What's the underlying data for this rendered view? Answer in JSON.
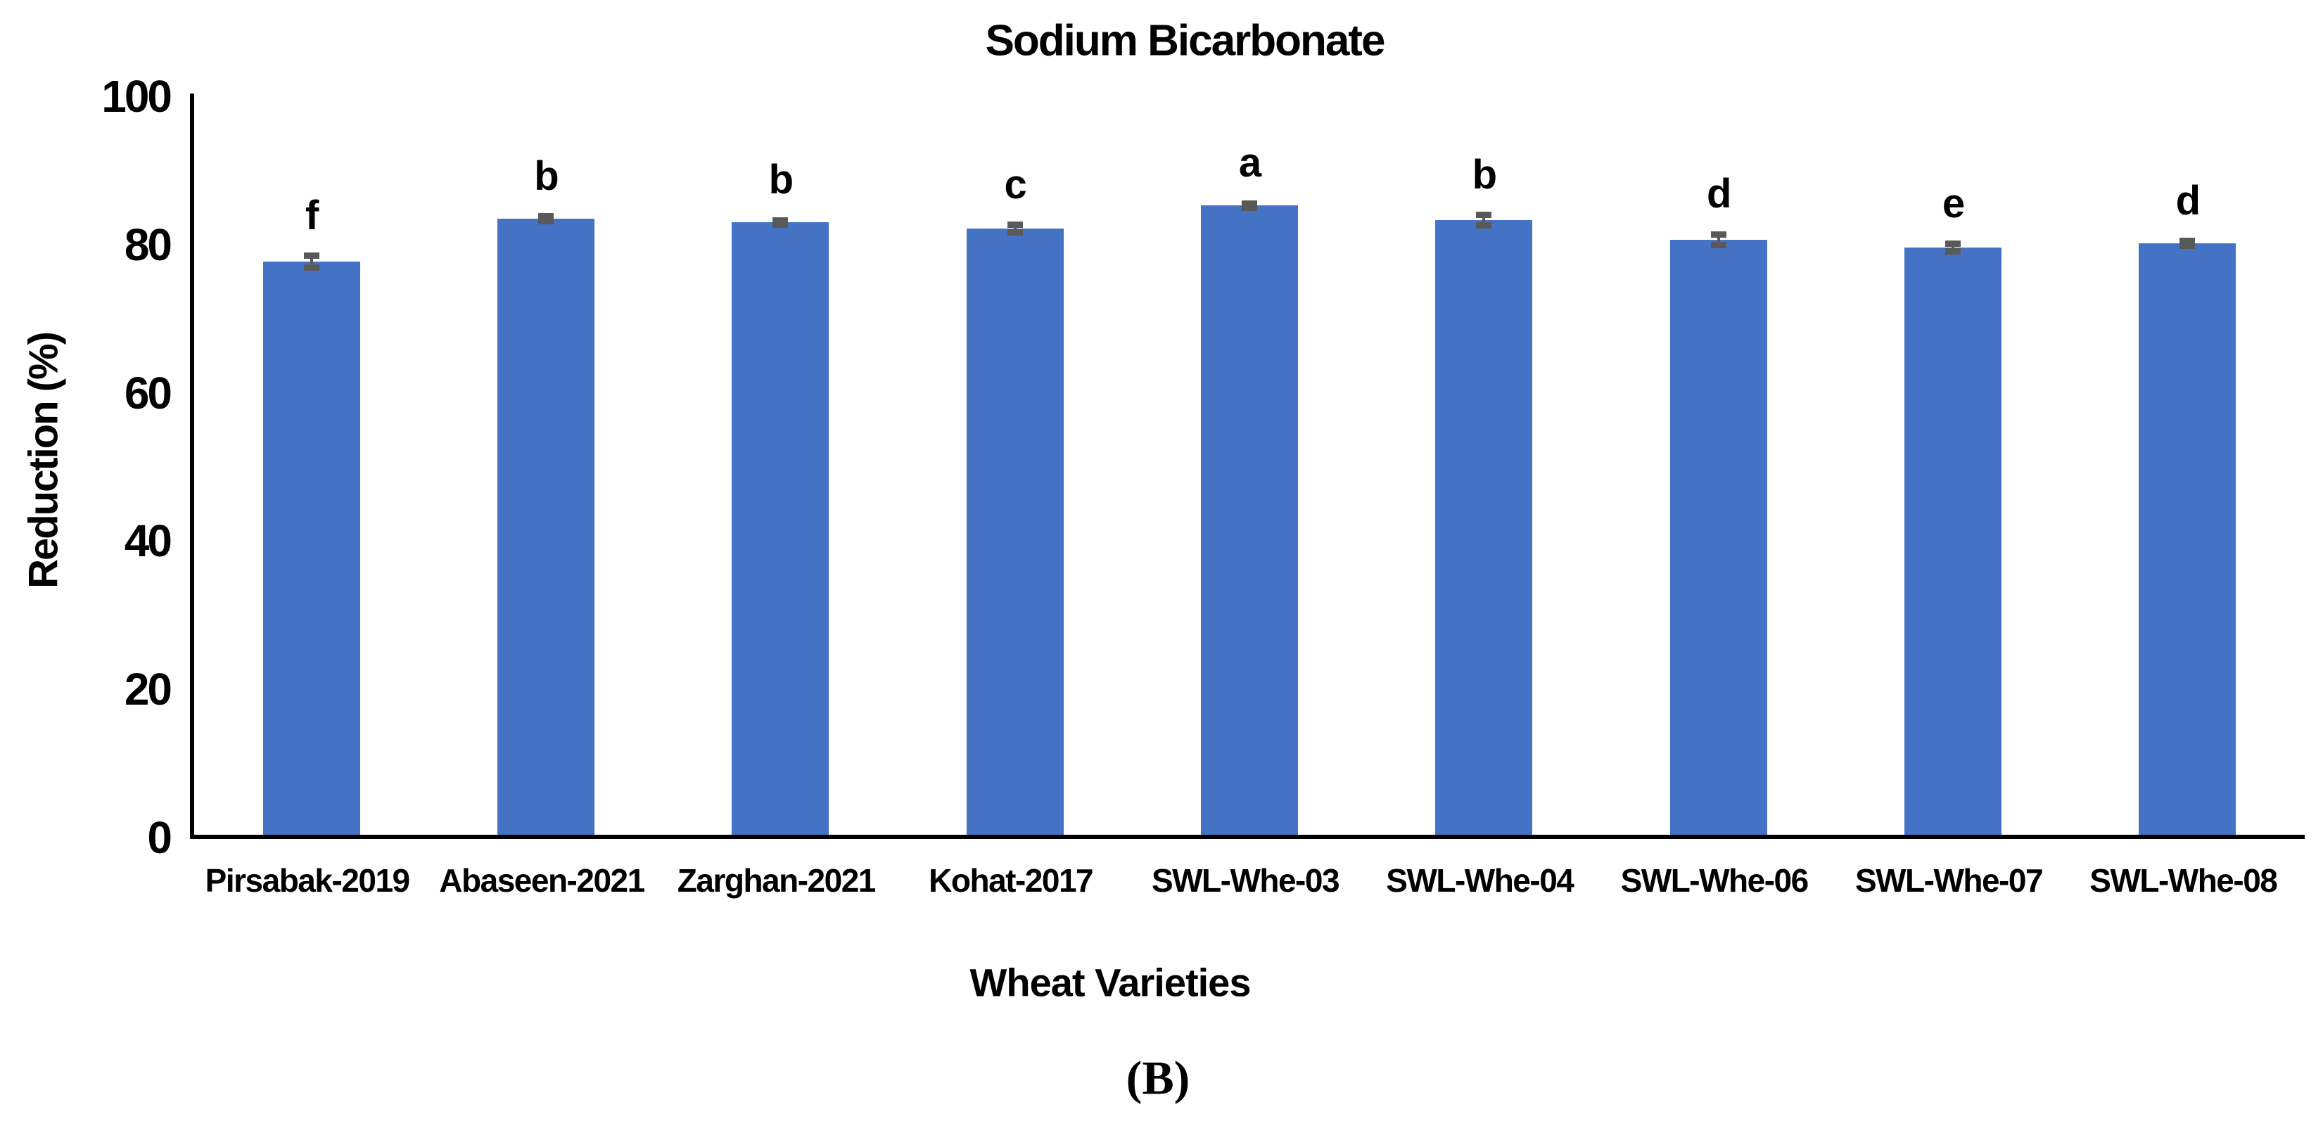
{
  "figure": {
    "panel_label": "(B)",
    "background_color": "#ffffff",
    "text_color": "#000000"
  },
  "chart_data": {
    "type": "bar",
    "title": "Sodium Bicarbonate",
    "xlabel": "Wheat Varieties",
    "ylabel": "Reduction (%)",
    "ylim": [
      0,
      100
    ],
    "yticks": [
      0,
      20,
      40,
      60,
      80,
      100
    ],
    "grid": false,
    "legend_position": "none",
    "bar_color": "#4472C4",
    "error_bar_color": "#595959",
    "categories": [
      "Pirsabak-2019",
      "Abaseen-2021",
      "Zarghan-2021",
      "Kohat-2017",
      "SWL-Whe-03",
      "SWL-Whe-04",
      "SWL-Whe-06",
      "SWL-Whe-07",
      "SWL-Whe-08"
    ],
    "series": [
      {
        "name": "Reduction (%)",
        "values": [
          77.3,
          83.1,
          82.6,
          81.8,
          84.9,
          82.9,
          80.3,
          79.2,
          79.8
        ],
        "errors": [
          0.8,
          0.3,
          0.3,
          0.5,
          0.3,
          0.7,
          0.7,
          0.5,
          0.3
        ],
        "significance_letters": [
          "f",
          "b",
          "b",
          "c",
          "a",
          "b",
          "d",
          "e",
          "d"
        ]
      }
    ]
  }
}
